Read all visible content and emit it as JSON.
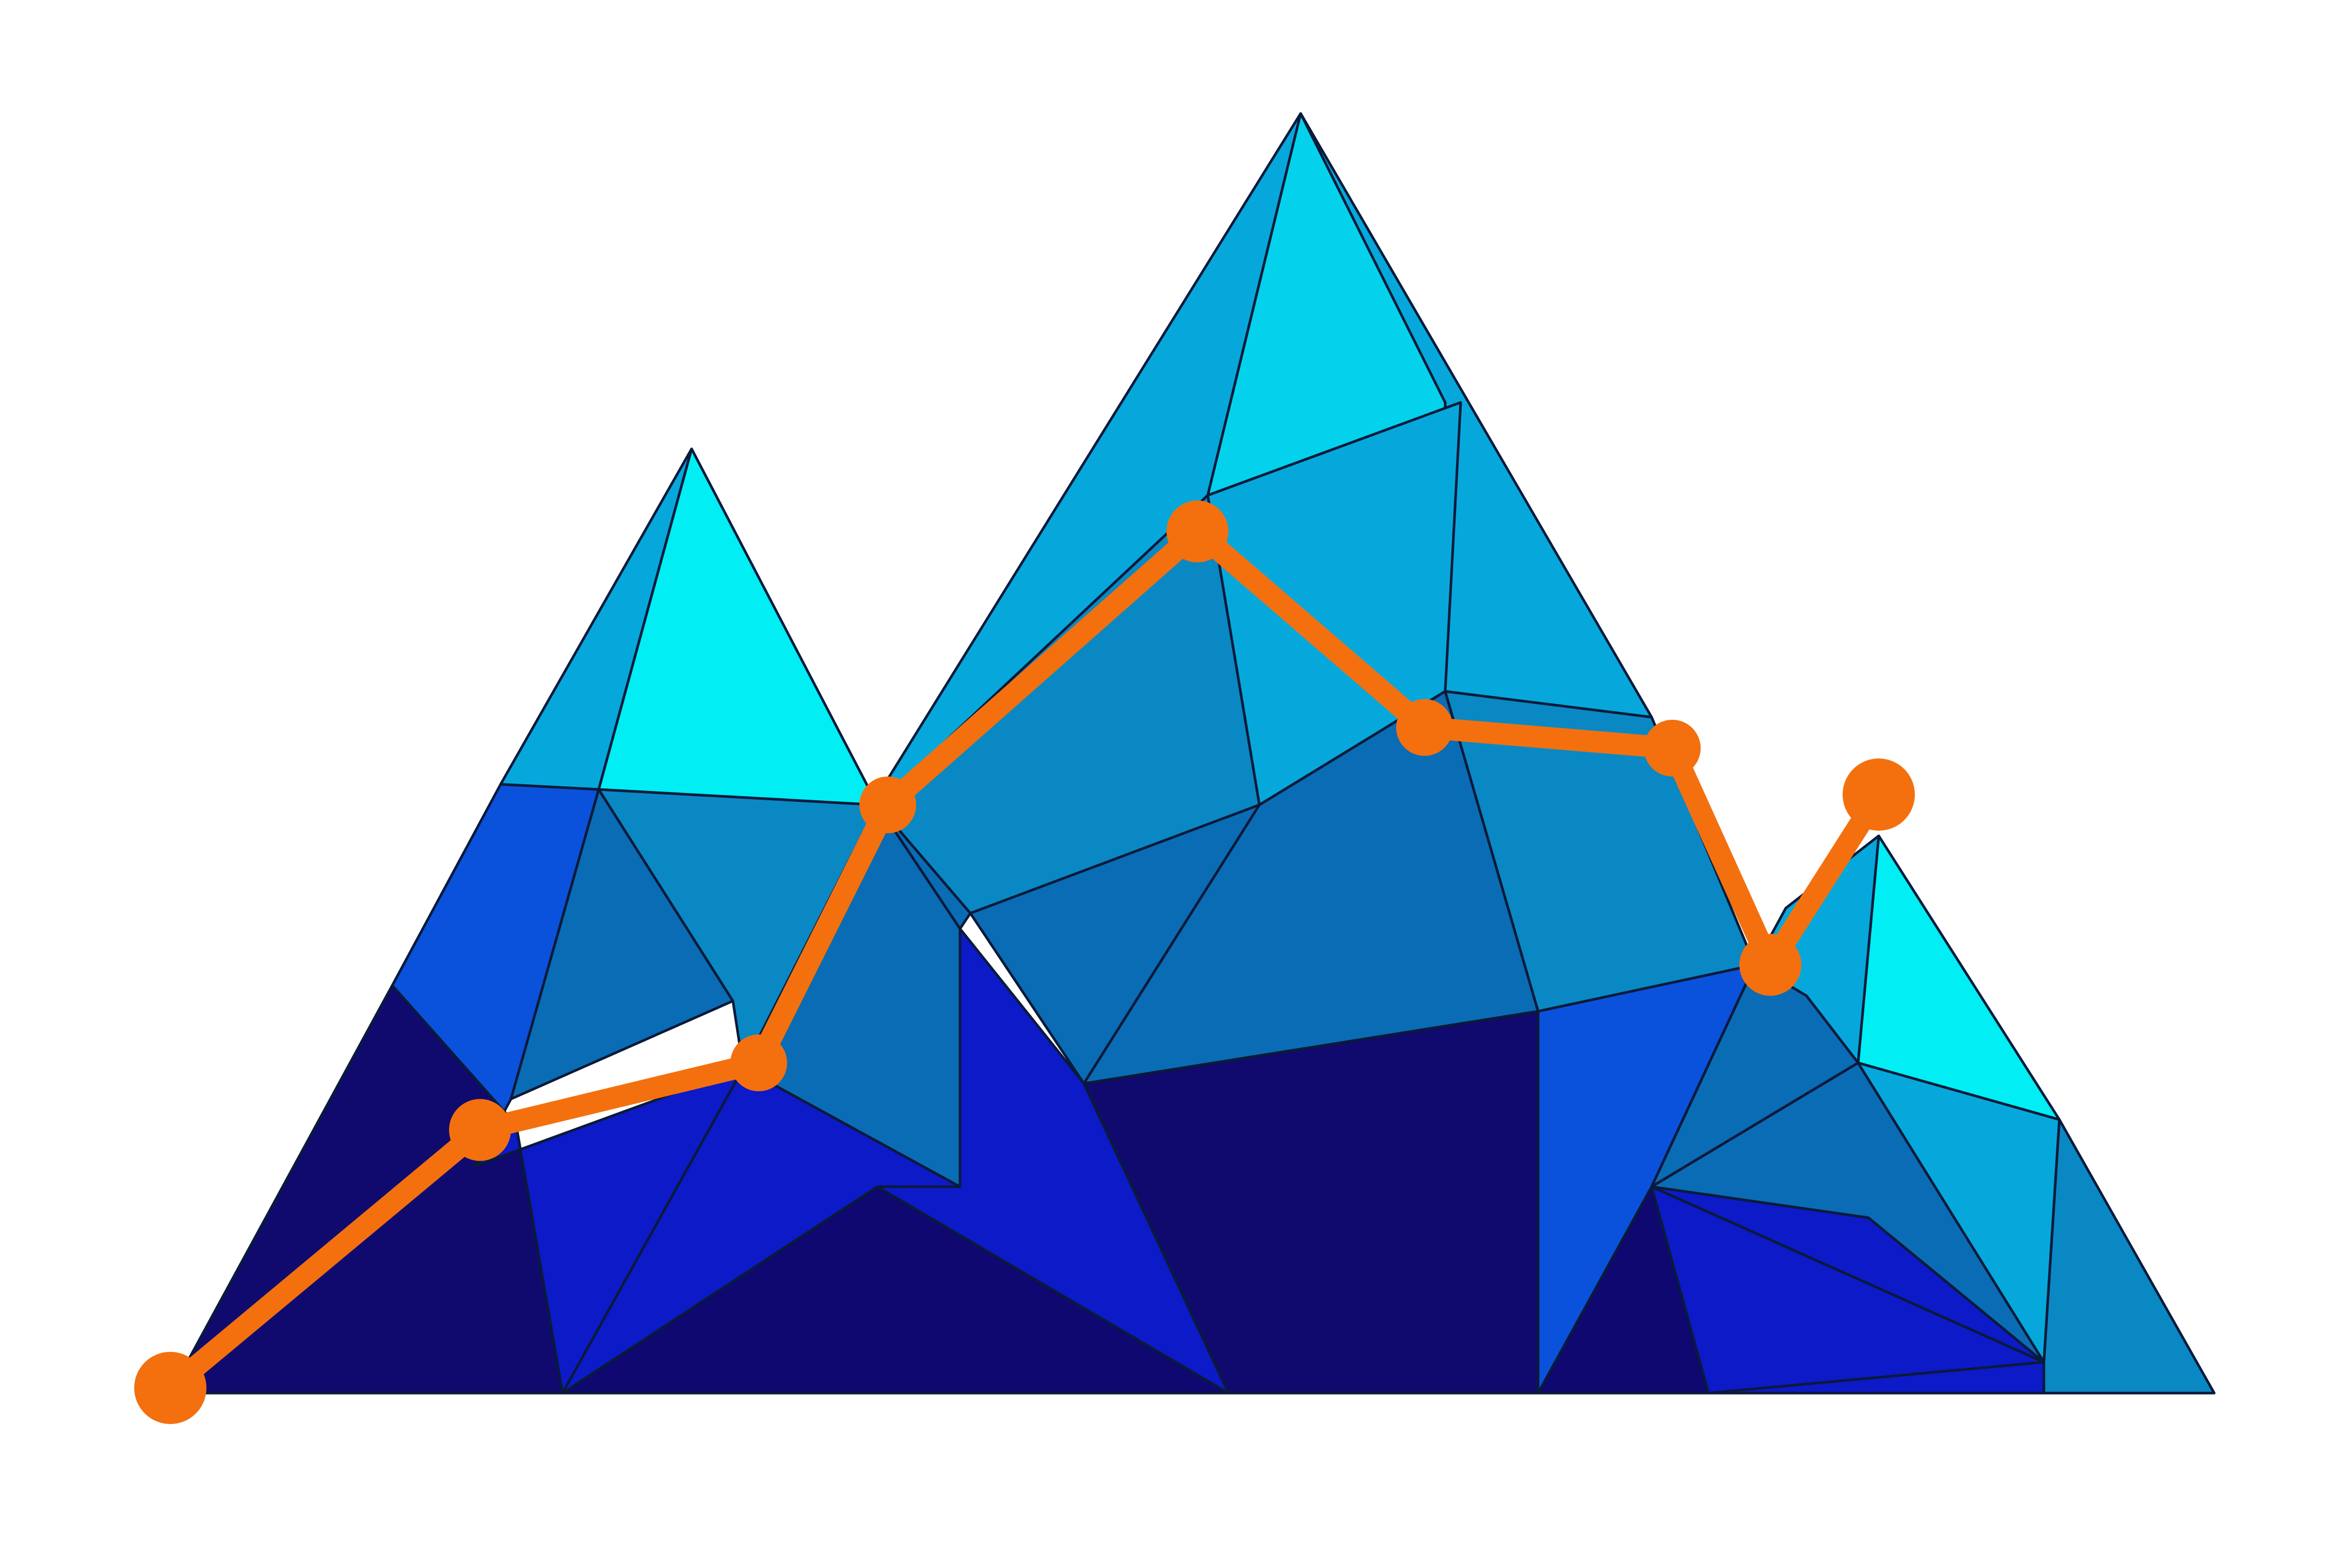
{
  "graphic": {
    "subject": "polygonal-mountain-range",
    "icon": "mountain-trend-icon"
  },
  "palette": {
    "navy": "#100a6e",
    "deep_navy": "#0e0870",
    "royal_blue": "#0c1ac8",
    "bright_blue": "#0a52dc",
    "mid_blue": "#0a6cb4",
    "steel_blue": "#0a88c4",
    "sky_blue": "#06a8dc",
    "light_cyan": "#04d2ec",
    "cyan": "#00eef4",
    "trend_orange": "#f4700e",
    "edge": "#0a1a3a"
  },
  "trend_line": {
    "point_count": 9,
    "markers": [
      "dot",
      "dot",
      "dot",
      "dot",
      "dot",
      "dot",
      "dot",
      "dot",
      "dot"
    ]
  }
}
